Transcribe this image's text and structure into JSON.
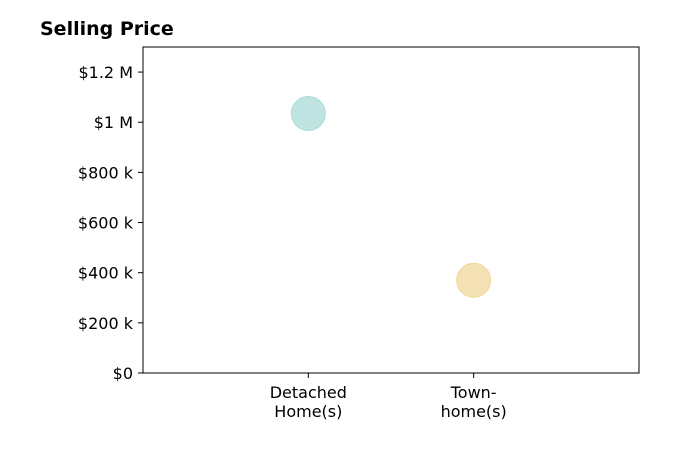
{
  "chart_data": {
    "type": "scatter",
    "title": "Selling Price",
    "xlabel": "",
    "ylabel": "",
    "categories": [
      [
        "Detached",
        "Home(s)"
      ],
      [
        "Town-",
        "home(s)"
      ]
    ],
    "points": [
      {
        "category_index": 0,
        "value": 1035000,
        "color": "#a9dbd7"
      },
      {
        "category_index": 1,
        "value": 370000,
        "color": "#f0d89c"
      }
    ],
    "xlim": [
      -1,
      2
    ],
    "ylim": [
      0,
      1300000
    ],
    "yticks": [
      {
        "value": 0,
        "label": "$0"
      },
      {
        "value": 200000,
        "label": "$200 k"
      },
      {
        "value": 400000,
        "label": "$400 k"
      },
      {
        "value": 600000,
        "label": "$600 k"
      },
      {
        "value": 800000,
        "label": "$800 k"
      },
      {
        "value": 1000000,
        "label": "$1 M"
      },
      {
        "value": 1200000,
        "label": "$1.2 M"
      }
    ],
    "grid": false,
    "legend": "none"
  }
}
